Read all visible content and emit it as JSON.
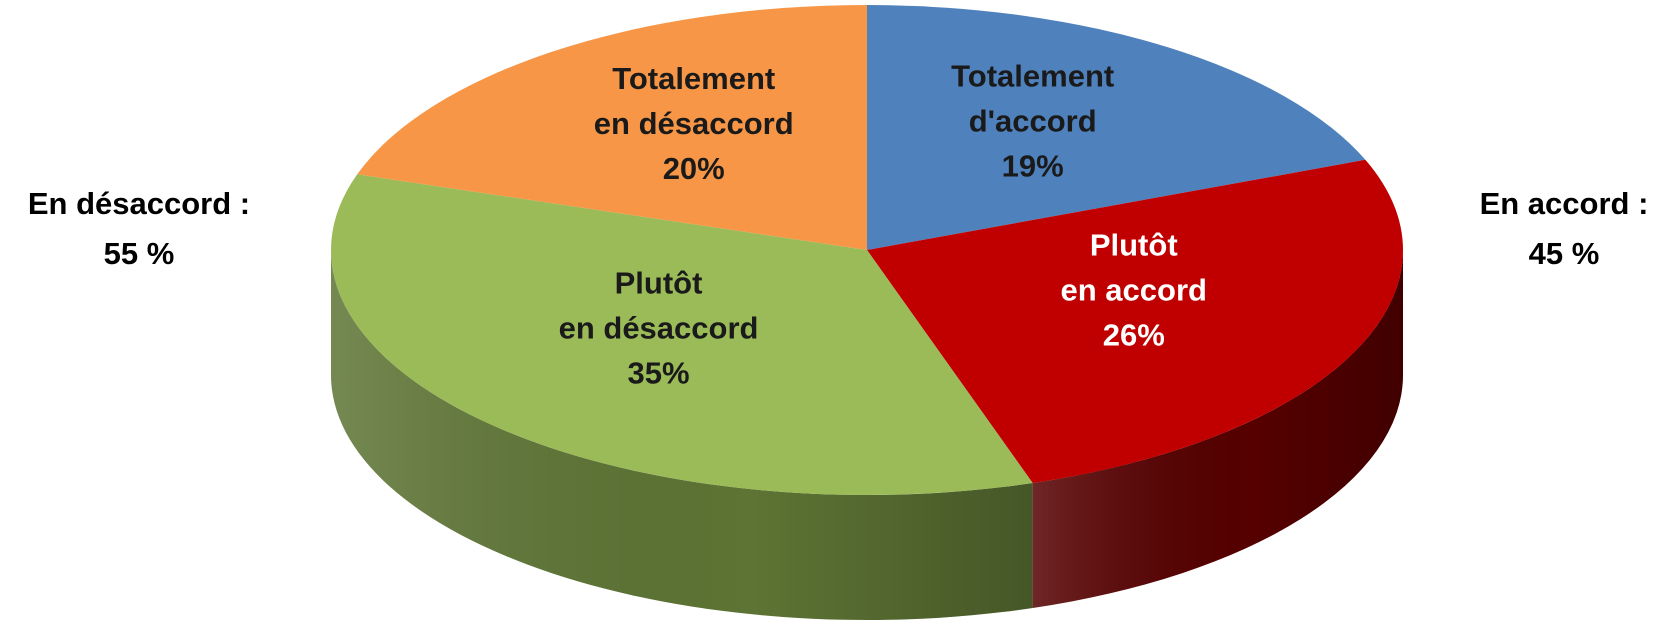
{
  "chart_data": {
    "type": "pie",
    "style": "3d",
    "categories": [
      "Totalement\nd'accord",
      "Plutôt\nen accord",
      "Plutôt\nen désaccord",
      "Totalement\nen désaccord"
    ],
    "values": [
      19,
      26,
      35,
      20
    ],
    "value_labels": [
      "19%",
      "26%",
      "35%",
      "20%"
    ],
    "colors": [
      "#4f81bd",
      "#c00000",
      "#9bbb59",
      "#f79646"
    ],
    "side_colors": [
      "#2f5583",
      "#560000",
      "#5d7434",
      "#b0622a"
    ],
    "label_colors": [
      "#1a1a1a",
      "#ffffff",
      "#1a1a1a",
      "#1a1a1a"
    ],
    "annotations": [
      {
        "text": "En désaccord :",
        "value": 55,
        "value_label": "55  %"
      },
      {
        "text": "En accord :",
        "value": 45,
        "value_label": "45  %"
      }
    ]
  }
}
